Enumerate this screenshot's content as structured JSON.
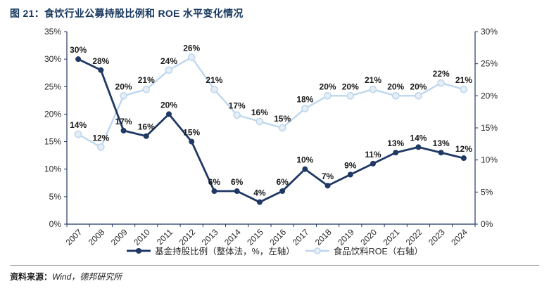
{
  "title": "图 21：食饮行业公募持股比例和 ROE 水平变化情况",
  "source_label": "资料来源：",
  "source_value": "Wind，德邦研究所",
  "colors": {
    "title": "#17375E",
    "axis": "#1F3864",
    "dark_series": "#1F3864",
    "light_series": "#BDD7EE",
    "light_marker_fill": "#E8EEF6",
    "label_text": "#1a1a1a"
  },
  "chart_data": {
    "type": "line",
    "x": [
      "2007",
      "2008",
      "2009",
      "2010",
      "2011",
      "2012",
      "2013",
      "2014",
      "2015",
      "2016",
      "2017",
      "2018",
      "2019",
      "2020",
      "2021",
      "2022",
      "2023",
      "2024"
    ],
    "series": [
      {
        "name": "基金持股比例（整体法，%，左轴）",
        "axis": "left",
        "marker": "filled",
        "values": [
          30,
          28,
          17,
          16,
          20,
          15,
          6,
          6,
          4,
          6,
          10,
          7,
          9,
          11,
          13,
          14,
          13,
          12
        ]
      },
      {
        "name": "食品饮料ROE（右轴）",
        "axis": "right",
        "marker": "hollow",
        "values": [
          14,
          12,
          20,
          21,
          24,
          26,
          21,
          17,
          16,
          15,
          18,
          20,
          20,
          21,
          20,
          20,
          22,
          21
        ]
      }
    ],
    "left_axis": {
      "min": 0,
      "max": 35,
      "step": 5,
      "format": "%"
    },
    "right_axis": {
      "min": 0,
      "max": 30,
      "step": 5,
      "format": "%"
    },
    "grid": false,
    "legend_position": "bottom",
    "data_labels": true
  }
}
